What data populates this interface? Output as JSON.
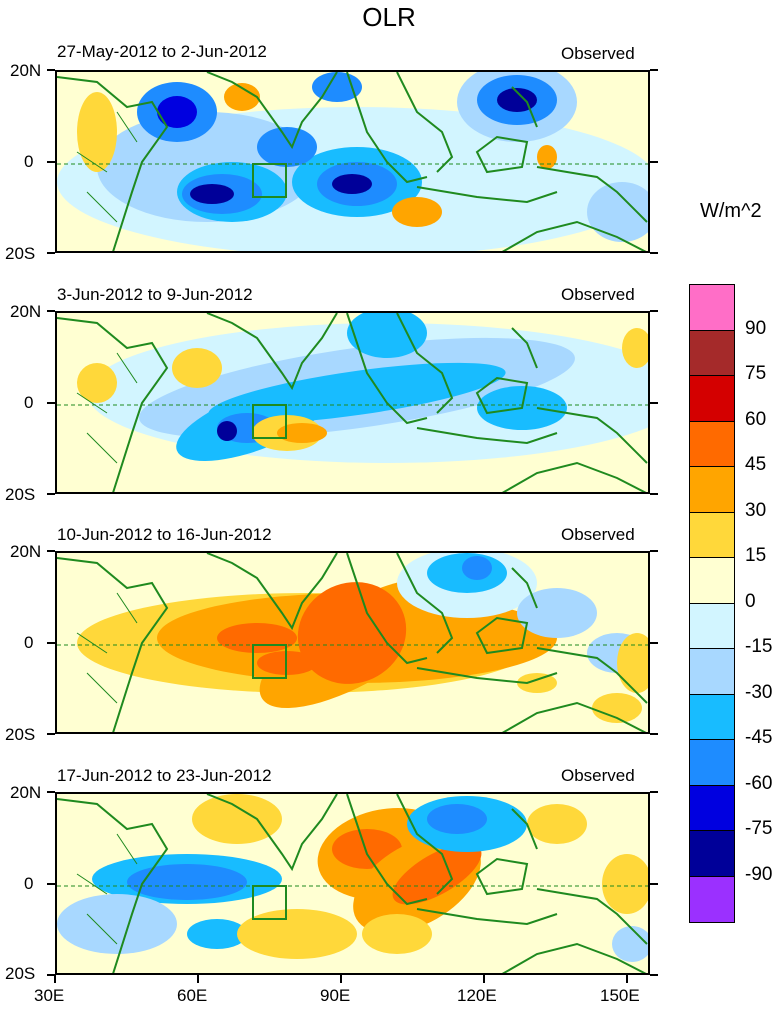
{
  "figure": {
    "title": "OLR",
    "units": "W/m^2",
    "lat_labels": [
      "20N",
      "0",
      "20S"
    ],
    "lon_labels": [
      "30E",
      "60E",
      "90E",
      "120E",
      "150E"
    ]
  },
  "panels": [
    {
      "date_range": "27-May-2012 to 2-Jun-2012",
      "tag": "Observed"
    },
    {
      "date_range": "3-Jun-2012 to 9-Jun-2012",
      "tag": "Observed"
    },
    {
      "date_range": "10-Jun-2012 to 16-Jun-2012",
      "tag": "Observed"
    },
    {
      "date_range": "17-Jun-2012 to 23-Jun-2012",
      "tag": "Observed"
    }
  ],
  "colorbar": {
    "labels": [
      "90",
      "75",
      "60",
      "45",
      "30",
      "15",
      "0",
      "-15",
      "-30",
      "-45",
      "-60",
      "-75",
      "-90"
    ],
    "colors": [
      "#ff6ec7",
      "#a52a2a",
      "#d40000",
      "#ff6a00",
      "#ffa500",
      "#ffd83a",
      "#ffffd2",
      "#d2f5ff",
      "#a8d8ff",
      "#18bcff",
      "#1e8cff",
      "#0000e0",
      "#000099",
      "#9b30ff"
    ]
  },
  "colors": {
    "coastline": "#1f8a1f",
    "background_field": "#ffffd2"
  }
}
